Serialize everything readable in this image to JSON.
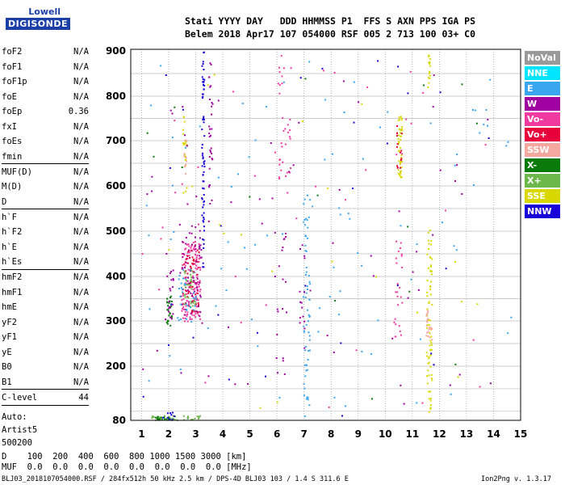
{
  "logo": {
    "line1": "Lowell",
    "line2": "DIGISONDE"
  },
  "header": {
    "line1": "Stati YYYY DAY   DDD HHMMSS P1  FFS S AXN PPS IGA PS",
    "line2": "Belem 2018 Apr17 107 054000 RSF 005 2 713 100 03+ C0"
  },
  "params": [
    {
      "k": "foF2",
      "v": "N/A"
    },
    {
      "k": "foF1",
      "v": "N/A"
    },
    {
      "k": "foF1p",
      "v": "N/A"
    },
    {
      "k": "foE",
      "v": "N/A"
    },
    {
      "k": "foEp",
      "v": "0.36"
    },
    {
      "k": "fxI",
      "v": "N/A"
    },
    {
      "k": "foEs",
      "v": "N/A"
    },
    {
      "k": "fmin",
      "v": "N/A"
    },
    {
      "k": "MUF(D)",
      "v": "N/A"
    },
    {
      "k": "M(D)",
      "v": "N/A"
    },
    {
      "k": "D",
      "v": "N/A"
    },
    {
      "k": "h`F",
      "v": "N/A"
    },
    {
      "k": "h`F2",
      "v": "N/A"
    },
    {
      "k": "h`E",
      "v": "N/A"
    },
    {
      "k": "h`Es",
      "v": "N/A"
    },
    {
      "k": "hmF2",
      "v": "N/A"
    },
    {
      "k": "hmF1",
      "v": "N/A"
    },
    {
      "k": "hmE",
      "v": "N/A"
    },
    {
      "k": "yF2",
      "v": "N/A"
    },
    {
      "k": "yF1",
      "v": "N/A"
    },
    {
      "k": "yE",
      "v": "N/A"
    },
    {
      "k": "B0",
      "v": "N/A"
    },
    {
      "k": "B1",
      "v": "N/A"
    },
    {
      "k": "C-level",
      "v": "44"
    }
  ],
  "auto": [
    "Auto:",
    "Artist5",
    "500200"
  ],
  "legend": [
    {
      "name": "NoVal",
      "color": "#999999"
    },
    {
      "name": "NNE",
      "color": "#00e5ff"
    },
    {
      "name": "E",
      "color": "#3aa6f0"
    },
    {
      "name": "W",
      "color": "#a0009f"
    },
    {
      "name": "Vo-",
      "color": "#f03aa0"
    },
    {
      "name": "Vo+",
      "color": "#e8003a"
    },
    {
      "name": "SSW",
      "color": "#f4a8a0"
    },
    {
      "name": "X-",
      "color": "#0a7a0a"
    },
    {
      "name": "X+",
      "color": "#6cb84a"
    },
    {
      "name": "SSE",
      "color": "#d8d800"
    },
    {
      "name": "NNW",
      "color": "#1a00d8"
    }
  ],
  "footer": {
    "d_row": "D    100  200  400  600  800 1000 1500 3000 [km]",
    "muf_row": "MUF  0.0  0.0  0.0  0.0  0.0  0.0  0.0  0.0 [MHz]",
    "file": "BLJ03_2018107054000.RSF / 284fx512h 50 kHz 2.5 km / DPS-4D BLJ03 103 / 1.4 S 311.6 E",
    "version": "Ion2Png v. 1.3.17"
  },
  "chart_data": {
    "type": "scatter",
    "xlim": [
      0.6,
      15
    ],
    "ylim": [
      80,
      900
    ],
    "xticks": [
      "1",
      "2",
      "3",
      "4",
      "5",
      "6",
      "7",
      "8",
      "9",
      "10",
      "11",
      "12",
      "13",
      "14",
      "15"
    ],
    "yticks": [
      "80",
      "200",
      "300",
      "400",
      "500",
      "600",
      "700",
      "800",
      "900"
    ],
    "ytick_values": [
      80,
      200,
      300,
      400,
      500,
      600,
      700,
      800,
      900
    ],
    "grid": true,
    "traces": [
      {
        "series": "NNW",
        "x": 3.2,
        "x2": 3.3,
        "y0": 420,
        "y1": 900,
        "n": 70
      },
      {
        "series": "W",
        "x": 3.45,
        "x2": 3.6,
        "y0": 560,
        "y1": 880,
        "n": 30
      },
      {
        "series": "Vo-",
        "x": 2.45,
        "x2": 3.15,
        "y0": 300,
        "y1": 480,
        "n": 140
      },
      {
        "series": "Vo+",
        "x": 2.5,
        "x2": 3.1,
        "y0": 320,
        "y1": 460,
        "n": 60
      },
      {
        "series": "W",
        "x": 2.4,
        "x2": 3.2,
        "y0": 310,
        "y1": 520,
        "n": 60
      },
      {
        "series": "X+",
        "x": 2.55,
        "x2": 3.0,
        "y0": 330,
        "y1": 420,
        "n": 30
      },
      {
        "series": "E",
        "x": 2.3,
        "x2": 3.0,
        "y0": 300,
        "y1": 430,
        "n": 30
      },
      {
        "series": "X-",
        "x": 1.9,
        "x2": 2.1,
        "y0": 290,
        "y1": 360,
        "n": 25
      },
      {
        "series": "W",
        "x": 1.85,
        "x2": 2.15,
        "y0": 300,
        "y1": 420,
        "n": 20
      },
      {
        "series": "SSE",
        "x": 2.5,
        "x2": 2.65,
        "y0": 580,
        "y1": 760,
        "n": 20
      },
      {
        "series": "SSW",
        "x": 2.55,
        "x2": 2.65,
        "y0": 600,
        "y1": 720,
        "n": 10
      },
      {
        "series": "E",
        "x": 6.95,
        "x2": 7.2,
        "y0": 90,
        "y1": 600,
        "n": 60
      },
      {
        "series": "W",
        "x": 6.8,
        "x2": 7.0,
        "y0": 220,
        "y1": 500,
        "n": 15
      },
      {
        "series": "SSE",
        "x": 10.45,
        "x2": 10.6,
        "y0": 620,
        "y1": 760,
        "n": 45
      },
      {
        "series": "Vo+",
        "x": 10.4,
        "x2": 10.6,
        "y0": 640,
        "y1": 740,
        "n": 15
      },
      {
        "series": "Vo-",
        "x": 10.3,
        "x2": 10.6,
        "y0": 260,
        "y1": 480,
        "n": 25
      },
      {
        "series": "SSE",
        "x": 11.5,
        "x2": 11.7,
        "y0": 100,
        "y1": 520,
        "n": 70
      },
      {
        "series": "SSE",
        "x": 11.55,
        "x2": 11.65,
        "y0": 820,
        "y1": 900,
        "n": 15
      },
      {
        "series": "SSW",
        "x": 11.45,
        "x2": 11.7,
        "y0": 260,
        "y1": 330,
        "n": 20
      },
      {
        "series": "Vo-",
        "x": 6.0,
        "x2": 6.5,
        "y0": 620,
        "y1": 900,
        "n": 30
      },
      {
        "series": "W",
        "x": 5.8,
        "x2": 6.4,
        "y0": 180,
        "y1": 500,
        "n": 20
      },
      {
        "series": "X+",
        "x": 1.3,
        "x2": 3.2,
        "y0": 82,
        "y1": 92,
        "n": 35
      },
      {
        "series": "X-",
        "x": 1.4,
        "x2": 2.0,
        "y0": 82,
        "y1": 90,
        "n": 15
      },
      {
        "series": "NNW",
        "x": 1.9,
        "x2": 2.2,
        "y0": 82,
        "y1": 100,
        "n": 10
      },
      {
        "series": "E",
        "x": 1.0,
        "x2": 14.8,
        "y0": 100,
        "y1": 880,
        "n": 90
      },
      {
        "series": "W",
        "x": 1.0,
        "x2": 14.0,
        "y0": 90,
        "y1": 880,
        "n": 60
      },
      {
        "series": "Vo-",
        "x": 1.0,
        "x2": 14.0,
        "y0": 100,
        "y1": 860,
        "n": 40
      },
      {
        "series": "NNW",
        "x": 1.0,
        "x2": 14.0,
        "y0": 85,
        "y1": 880,
        "n": 30
      },
      {
        "series": "X-",
        "x": 1.0,
        "x2": 14.0,
        "y0": 85,
        "y1": 880,
        "n": 15
      },
      {
        "series": "SSE",
        "x": 1.0,
        "x2": 14.0,
        "y0": 85,
        "y1": 880,
        "n": 20
      }
    ]
  }
}
